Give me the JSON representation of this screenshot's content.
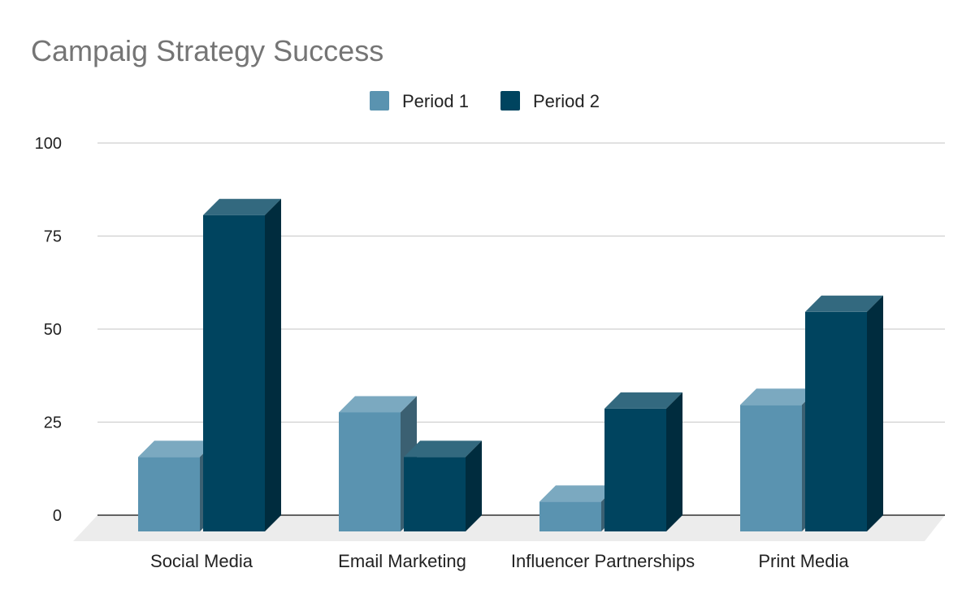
{
  "chart_data": {
    "type": "bar",
    "title": "Campaig Strategy Success",
    "xlabel": "",
    "ylabel": "",
    "categories": [
      "Social Media",
      "Email Marketing",
      "Influencer Partnerships",
      "Print Media"
    ],
    "series": [
      {
        "name": "Period 1",
        "values": [
          20,
          32,
          8,
          34
        ],
        "color": "#5a93b0"
      },
      {
        "name": "Period 2",
        "values": [
          85,
          20,
          33,
          59
        ],
        "color": "#00445f"
      }
    ],
    "ylim": [
      0,
      100
    ],
    "yticks": [
      0,
      25,
      50,
      75,
      100
    ],
    "grid": true,
    "legend_position": "top-center",
    "style": "3d-column"
  }
}
